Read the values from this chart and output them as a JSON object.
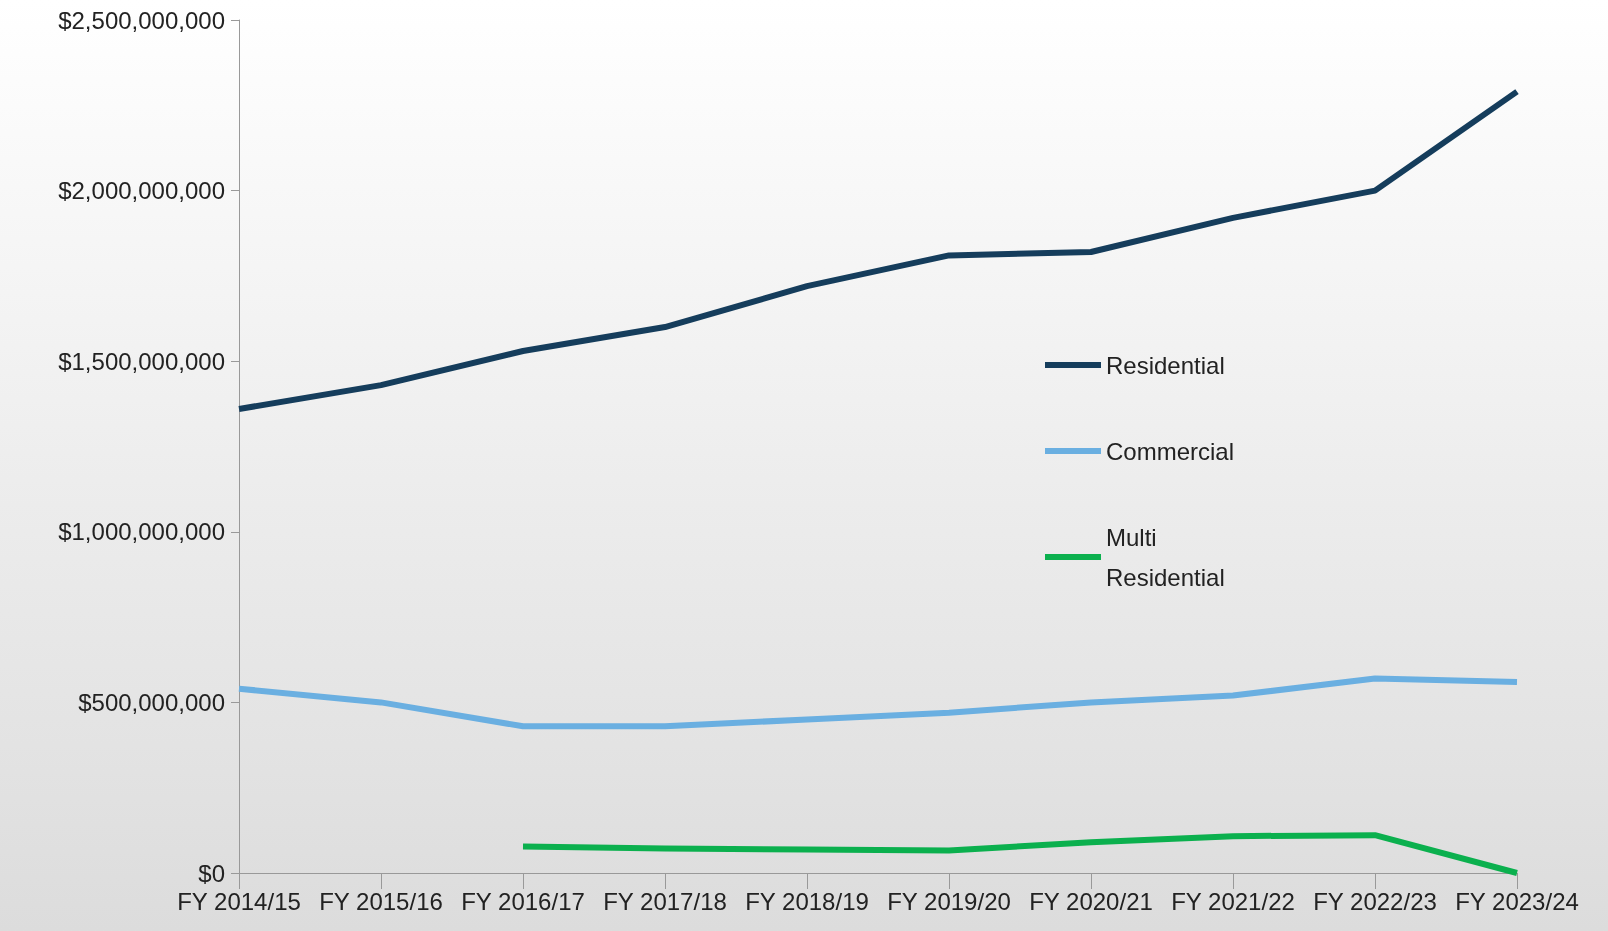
{
  "chart_data": {
    "type": "line",
    "categories": [
      "FY 2014/15",
      "FY 2015/16",
      "FY 2016/17",
      "FY 2017/18",
      "FY 2018/19",
      "FY 2019/20",
      "FY 2020/21",
      "FY 2021/22",
      "FY 2022/23",
      "FY 2023/24"
    ],
    "series": [
      {
        "name": "Residential",
        "color": "#153d5c",
        "values": [
          1360000000,
          1430000000,
          1530000000,
          1600000000,
          1720000000,
          1810000000,
          1820000000,
          1920000000,
          2000000000,
          2290000000
        ]
      },
      {
        "name": "Commercial",
        "color": "#6aafe1",
        "values": [
          540000000,
          500000000,
          430000000,
          430000000,
          450000000,
          470000000,
          500000000,
          520000000,
          570000000,
          560000000
        ]
      },
      {
        "name": "Multi Residential",
        "color": "#0bb04e",
        "values": [
          null,
          null,
          78000000,
          72000000,
          69000000,
          66000000,
          90000000,
          108000000,
          111000000,
          0
        ]
      }
    ],
    "ylim": [
      0,
      2500000000
    ],
    "yticks": [
      {
        "value": 0,
        "label": "$0"
      },
      {
        "value": 500000000,
        "label": "$500,000,000"
      },
      {
        "value": 1000000000,
        "label": "$1,000,000,000"
      },
      {
        "value": 1500000000,
        "label": "$1,500,000,000"
      },
      {
        "value": 2000000000,
        "label": "$2,000,000,000"
      },
      {
        "value": 2500000000,
        "label": "$2,500,000,000"
      }
    ],
    "grid": false,
    "legend": "right",
    "marker": "none",
    "line_style": "solid"
  }
}
